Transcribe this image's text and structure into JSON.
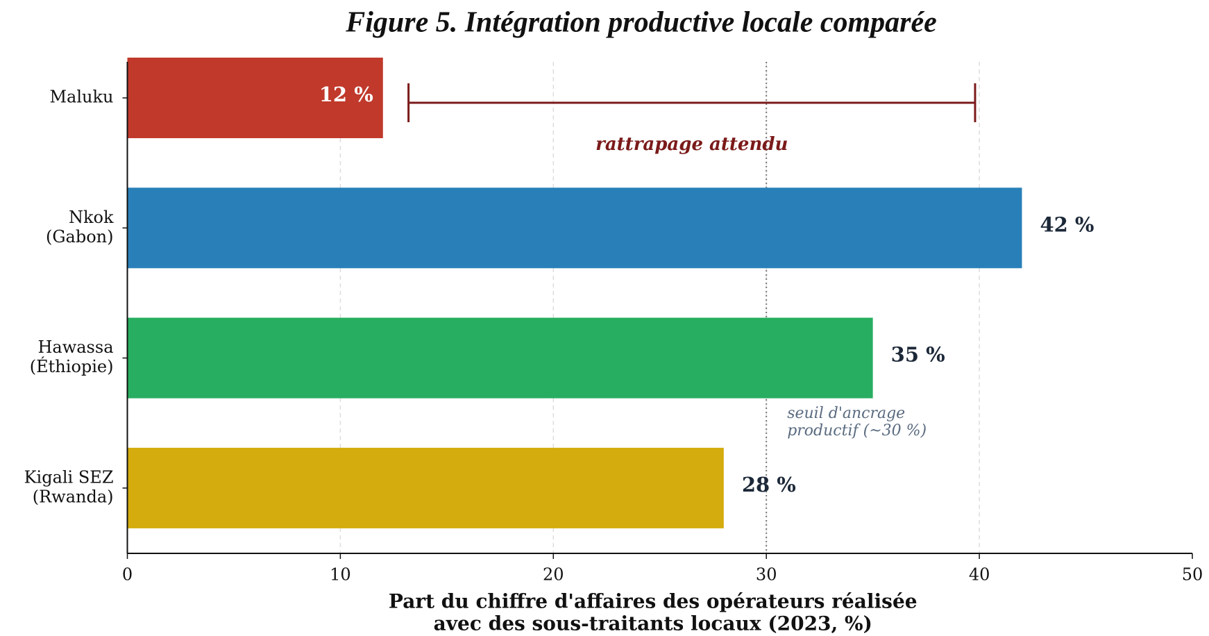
{
  "chart_data": {
    "type": "barh",
    "title": "Figure 5. Intégration productive locale comparée",
    "categories": [
      [
        "Maluku"
      ],
      [
        "Nkok",
        "(Gabon)"
      ],
      [
        "Hawassa",
        "(Éthiopie)"
      ],
      [
        "Kigali SEZ",
        "(Rwanda)"
      ]
    ],
    "values": [
      12,
      42,
      35,
      28
    ],
    "value_labels": [
      "12 %",
      "42 %",
      "35 %",
      "28 %"
    ],
    "colors": [
      "#c0392b",
      "#2980b9",
      "#27ae60",
      "#d4ac0d"
    ],
    "xlabel": [
      "Part du chiffre d'affaires des opérateurs réalisée",
      "avec des sous-traitants locaux (2023, %)"
    ],
    "xlim": [
      0,
      50
    ],
    "xticks": [
      0,
      10,
      20,
      30,
      40,
      50
    ],
    "grid": true,
    "threshold": {
      "value": 30,
      "label": [
        "seuil d'ancrage",
        "productif (~30 %)"
      ]
    },
    "bracket": {
      "range": [
        13.2,
        39.8
      ],
      "label": "rattrapage attendu"
    }
  }
}
